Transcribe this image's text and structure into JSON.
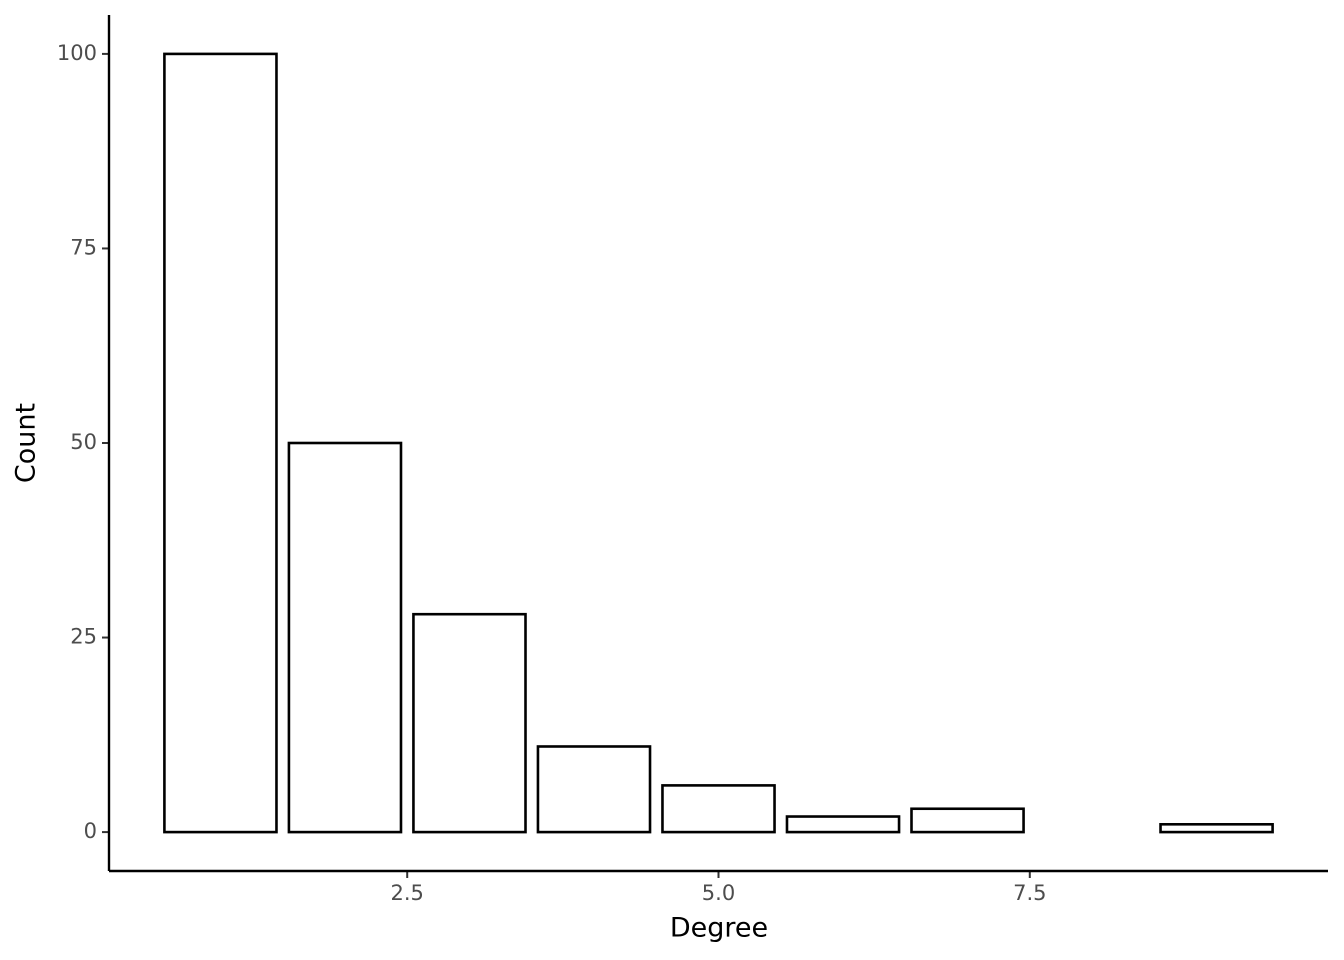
{
  "chart_data": {
    "type": "bar",
    "x_label": "Degree",
    "y_label": "Count",
    "x": [
      1,
      2,
      3,
      4,
      5,
      6,
      7,
      9
    ],
    "values": [
      100,
      50,
      28,
      11,
      6,
      2,
      3,
      1
    ],
    "color": "#ffffff",
    "stroke": "#000000",
    "xlim": [
      0.105,
      9.895
    ],
    "xticks": [
      2.5,
      {
        "value": 5,
        "label": "5.0"
      },
      7.5
    ],
    "ylim": [
      -5,
      105
    ],
    "yticks": [
      0,
      25,
      50,
      75,
      100
    ],
    "grid": false
  }
}
